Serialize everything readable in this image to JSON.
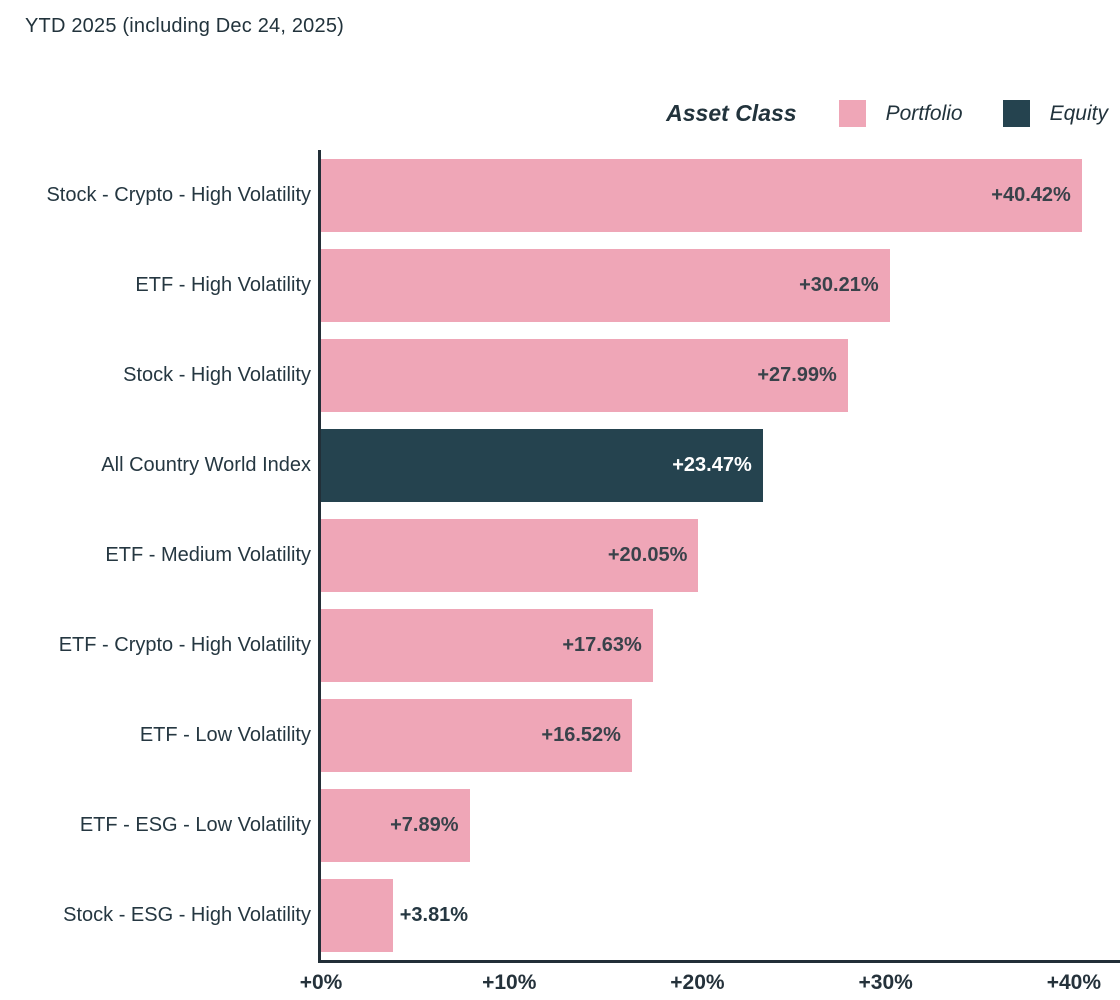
{
  "title": "YTD 2025 (including Dec 24, 2025)",
  "legend": {
    "title": "Asset Class",
    "items": [
      {
        "label": "Portfolio",
        "color": "#EFA6B7",
        "value_text_color": "#39424A"
      },
      {
        "label": "Equity",
        "color": "#25434F",
        "value_text_color": "#FFFFFF"
      }
    ]
  },
  "colors": {
    "background": "#FFFFFF",
    "axis_line": "#222F38",
    "text": "#253741",
    "tick_text": "#25323B"
  },
  "chart_data": {
    "type": "bar",
    "orientation": "horizontal",
    "title": "YTD 2025 (including Dec 24, 2025)",
    "legend_title": "Asset Class",
    "legend_position": "top-right",
    "grid": false,
    "xlabel": "",
    "ylabel": "",
    "xlim": [
      0,
      42.45
    ],
    "categories": [
      "Stock - Crypto - High Volatility",
      "ETF - High Volatility",
      "Stock - High Volatility",
      "All Country World Index",
      "ETF - Medium Volatility",
      "ETF - Crypto - High Volatility",
      "ETF - Low Volatility",
      "ETF - ESG - Low Volatility",
      "Stock - ESG - High Volatility"
    ],
    "values": [
      40.42,
      30.21,
      27.99,
      23.47,
      20.05,
      17.63,
      16.52,
      7.89,
      3.81
    ],
    "value_labels": [
      "+40.42%",
      "+30.21%",
      "+27.99%",
      "+23.47%",
      "+20.05%",
      "+17.63%",
      "+16.52%",
      "+7.89%",
      "+3.81%"
    ],
    "groups": [
      "Portfolio",
      "Portfolio",
      "Portfolio",
      "Equity",
      "Portfolio",
      "Portfolio",
      "Portfolio",
      "Portfolio",
      "Portfolio"
    ],
    "xticks": [
      {
        "value": 0,
        "label": "+0%"
      },
      {
        "value": 10,
        "label": "+10%"
      },
      {
        "value": 20,
        "label": "+20%"
      },
      {
        "value": 30,
        "label": "+30%"
      },
      {
        "value": 40,
        "label": "+40%"
      }
    ]
  }
}
